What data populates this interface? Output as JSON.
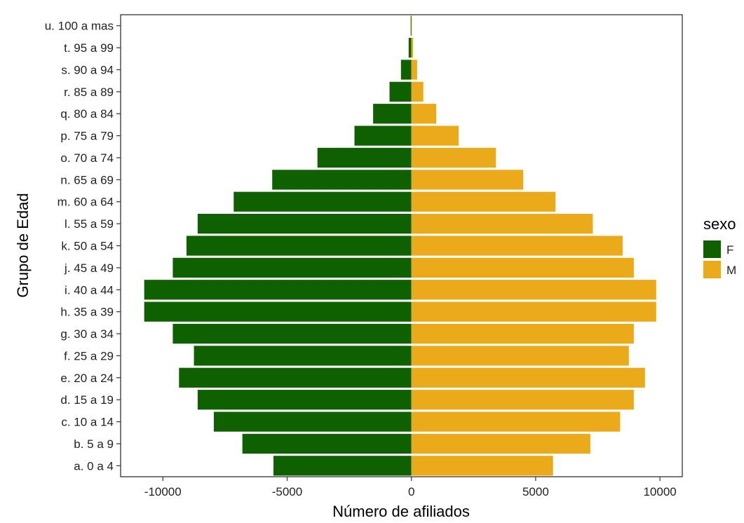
{
  "chart_data": {
    "type": "bar",
    "orientation": "horizontal",
    "xlabel": "Número de afiliados",
    "ylabel": "Grupo de Edad",
    "xlim": [
      -11700,
      10900
    ],
    "x_ticks": [
      -10000,
      -5000,
      0,
      5000,
      10000
    ],
    "x_tick_labels": [
      "-10000",
      "-5000",
      "0",
      "5000",
      "10000"
    ],
    "grid": false,
    "legend": {
      "title": "sexo",
      "position": "right"
    },
    "categories": [
      "a. 0 a 4",
      "b. 5 a 9",
      "c. 10 a 14",
      "d. 15 a 19",
      "e. 20 a 24",
      "f. 25 a 29",
      "g. 30 a 34",
      "h. 35 a 39",
      "i. 40 a 44",
      "j. 45 a 49",
      "k. 50 a 54",
      "l. 55 a 59",
      "m. 60 a 64",
      "n. 65 a 69",
      "o. 70 a 74",
      "p. 75 a 79",
      "q. 80 a 84",
      "r. 85 a 89",
      "s. 90 a 94",
      "t. 95 a 99",
      "u. 100 a mas"
    ],
    "series": [
      {
        "name": "F",
        "color": "#0f6100",
        "values": [
          -5550,
          -6800,
          -7950,
          -8600,
          -9350,
          -8750,
          -9600,
          -10750,
          -10750,
          -9600,
          -9050,
          -8600,
          -7150,
          -5600,
          -3780,
          -2290,
          -1540,
          -880,
          -420,
          -110,
          -30
        ]
      },
      {
        "name": "M",
        "color": "#eaaa19",
        "values": [
          5700,
          7200,
          8400,
          8950,
          9400,
          8750,
          8950,
          9850,
          9850,
          8950,
          8500,
          7300,
          5800,
          4500,
          3400,
          1900,
          1000,
          480,
          230,
          70,
          20
        ]
      }
    ]
  }
}
